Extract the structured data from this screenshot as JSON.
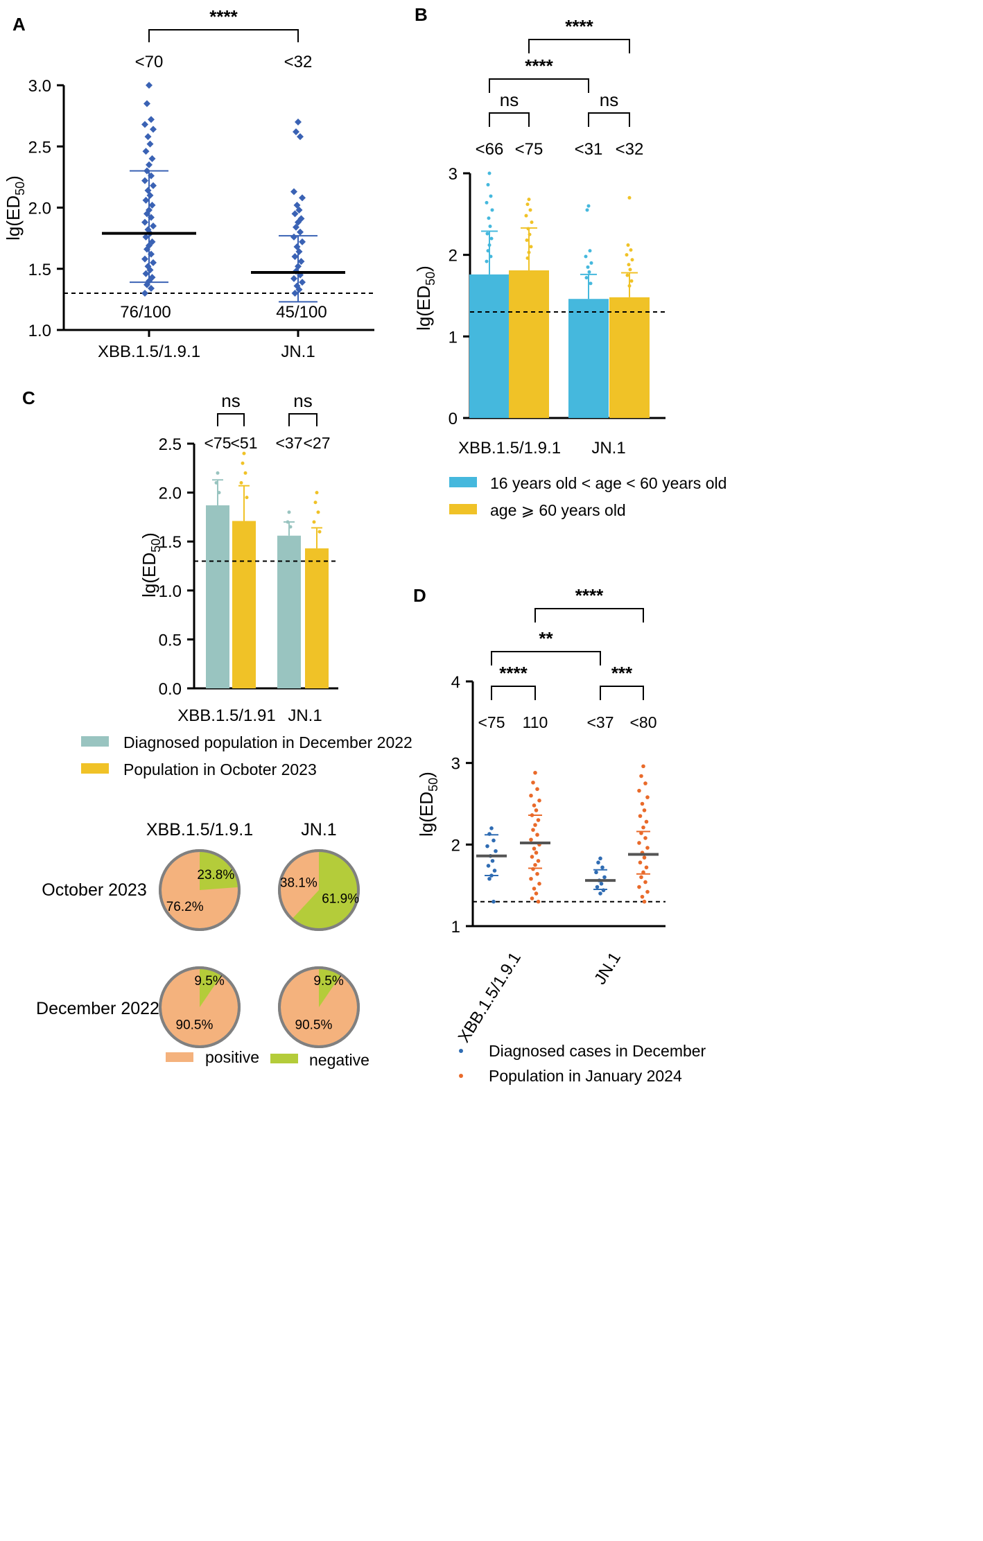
{
  "colors": {
    "blue_dark": "#3a62b4",
    "cyan": "#45b8dd",
    "gold": "#f0c227",
    "teal": "#99c4c0",
    "navy": "#2f6cb3",
    "orange": "#e96a2a",
    "salmon": "#f4b27d",
    "lime": "#b4cc3a",
    "pie_border": "#808080"
  },
  "chart_data": [
    {
      "panel": "A",
      "type": "scatter",
      "ylabel": "lg(ED50)",
      "ylim": [
        1.0,
        3.0
      ],
      "yticks": [
        "1.0",
        "1.5",
        "2.0",
        "2.5",
        "3.0"
      ],
      "yticks_values": [
        1.0,
        1.5,
        2.0,
        2.5,
        3.0
      ],
      "categories": [
        "XBB.1.5/1.9.1",
        "JN.1"
      ],
      "threshold": 1.3,
      "groups": [
        {
          "name": "XBB.1.5/1.9.1",
          "mean": 1.79,
          "sd_low": 1.39,
          "sd_high": 2.3,
          "top_label": "<70",
          "bottom_label": "76/100",
          "points": [
            3.0,
            2.85,
            2.72,
            2.68,
            2.64,
            2.58,
            2.52,
            2.46,
            2.4,
            2.35,
            2.3,
            2.26,
            2.22,
            2.18,
            2.14,
            2.1,
            2.06,
            2.02,
            1.98,
            1.95,
            1.92,
            1.88,
            1.85,
            1.82,
            1.79,
            1.76,
            1.72,
            1.69,
            1.66,
            1.62,
            1.58,
            1.55,
            1.52,
            1.49,
            1.46,
            1.43,
            1.4,
            1.37,
            1.34,
            1.3
          ]
        },
        {
          "name": "JN.1",
          "mean": 1.47,
          "sd_low": 1.23,
          "sd_high": 1.77,
          "top_label": "<32",
          "bottom_label": "45/100",
          "points": [
            2.7,
            2.62,
            2.58,
            2.13,
            2.08,
            2.02,
            1.98,
            1.95,
            1.91,
            1.88,
            1.84,
            1.8,
            1.76,
            1.72,
            1.68,
            1.64,
            1.6,
            1.56,
            1.52,
            1.48,
            1.45,
            1.42,
            1.39,
            1.36,
            1.33,
            1.3
          ]
        }
      ],
      "brackets": [
        {
          "from": 0,
          "to": 1,
          "label": "****"
        }
      ]
    },
    {
      "panel": "B",
      "type": "bar",
      "ylabel": "lg(ED50)",
      "ylim": [
        0,
        3
      ],
      "yticks": [
        "0",
        "1",
        "2",
        "3"
      ],
      "yticks_values": [
        0,
        1,
        2,
        3
      ],
      "categories": [
        "XBB.1.5/1.9.1",
        "JN.1"
      ],
      "threshold": 1.3,
      "series": [
        {
          "name": "16 years old < age < 60 years old",
          "values": [
            1.76,
            1.46
          ],
          "sd_high": [
            2.29,
            1.76
          ],
          "sd_low": [
            1.76,
            1.46
          ],
          "labels": [
            "<66",
            "<31"
          ],
          "points": [
            [
              3.0,
              2.86,
              2.72,
              2.64,
              2.55,
              2.45,
              2.35,
              2.26,
              2.2,
              2.12,
              2.05,
              1.98,
              1.92
            ],
            [
              2.6,
              2.55,
              2.05,
              1.98,
              1.9,
              1.85,
              1.79,
              1.72,
              1.65
            ]
          ]
        },
        {
          "name": "age ⩾ 60 years old",
          "values": [
            1.81,
            1.48
          ],
          "sd_high": [
            2.33,
            1.78
          ],
          "sd_low": [
            1.81,
            1.48
          ],
          "labels": [
            "<75",
            "<32"
          ],
          "points": [
            [
              2.68,
              2.62,
              2.55,
              2.48,
              2.4,
              2.32,
              2.25,
              2.18,
              2.1,
              2.03,
              1.96
            ],
            [
              2.7,
              2.12,
              2.06,
              2.0,
              1.94,
              1.88,
              1.82,
              1.75,
              1.68,
              1.62
            ]
          ]
        }
      ],
      "brackets": [
        {
          "label": "ns",
          "level": 1
        },
        {
          "label": "ns",
          "level": 1
        },
        {
          "label": "****",
          "level": 2
        },
        {
          "label": "****",
          "level": 3
        }
      ]
    },
    {
      "panel": "C",
      "type": "bar",
      "ylabel": "lg(ED50)",
      "ylim": [
        0.0,
        2.5
      ],
      "yticks": [
        "0.0",
        "0.5",
        "1.0",
        "1.5",
        "2.0",
        "2.5"
      ],
      "yticks_values": [
        0.0,
        0.5,
        1.0,
        1.5,
        2.0,
        2.5
      ],
      "categories": [
        "XBB.1.5/1.91",
        "JN.1"
      ],
      "threshold": 1.3,
      "series": [
        {
          "name": "Diagnosed population in December 2022",
          "values": [
            1.87,
            1.56
          ],
          "sd_high": [
            2.13,
            1.7
          ],
          "labels": [
            "<75",
            "<37"
          ],
          "points": [
            [
              2.2,
              2.1,
              2.0
            ],
            [
              1.8,
              1.7,
              1.65
            ]
          ]
        },
        {
          "name": "Population in Ocboter 2023",
          "values": [
            1.71,
            1.43
          ],
          "sd_high": [
            2.07,
            1.64
          ],
          "labels": [
            "<51",
            "<27"
          ],
          "points": [
            [
              2.4,
              2.3,
              2.2,
              2.1,
              1.95
            ],
            [
              2.0,
              1.9,
              1.8,
              1.7,
              1.6
            ]
          ]
        }
      ],
      "brackets": [
        {
          "label": "ns"
        },
        {
          "label": "ns"
        }
      ]
    },
    {
      "panel": "C-pies",
      "type": "pie",
      "columns": [
        "XBB.1.5/1.9.1",
        "JN.1"
      ],
      "rows": [
        "October 2023",
        "December 2022"
      ],
      "legend": [
        "positive",
        "negative"
      ],
      "pies": [
        {
          "row": "October 2023",
          "column": "XBB.1.5/1.9.1",
          "positive": 76.2,
          "negative": 23.8,
          "positive_label": "76.2%",
          "negative_label": "23.8%"
        },
        {
          "row": "October 2023",
          "column": "JN.1",
          "positive": 38.1,
          "negative": 61.9,
          "positive_label": "38.1%",
          "negative_label": "61.9%"
        },
        {
          "row": "December 2022",
          "column": "XBB.1.5/1.9.1",
          "positive": 90.5,
          "negative": 9.5,
          "positive_label": "90.5%",
          "negative_label": "9.5%"
        },
        {
          "row": "December 2022",
          "column": "JN.1",
          "positive": 90.5,
          "negative": 9.5,
          "positive_label": "90.5%",
          "negative_label": "9.5%"
        }
      ]
    },
    {
      "panel": "D",
      "type": "scatter",
      "ylabel": "lg(ED50)",
      "ylim": [
        1,
        4
      ],
      "yticks": [
        "1",
        "2",
        "3",
        "4"
      ],
      "yticks_values": [
        1,
        2,
        3,
        4
      ],
      "categories": [
        "XBB.1.5/1.9.1",
        "JN.1"
      ],
      "threshold": 1.3,
      "series": [
        {
          "name": "Diagnosed cases in December",
          "means": [
            1.86,
            1.56
          ],
          "sd_low": [
            1.62,
            1.45
          ],
          "sd_high": [
            2.12,
            1.69
          ],
          "labels": [
            "<75",
            "<37"
          ],
          "points": [
            [
              2.2,
              2.13,
              2.05,
              1.98,
              1.92,
              1.86,
              1.8,
              1.74,
              1.68,
              1.62,
              1.58,
              1.3
            ],
            [
              1.83,
              1.78,
              1.72,
              1.66,
              1.6,
              1.56,
              1.52,
              1.48,
              1.44,
              1.4
            ]
          ]
        },
        {
          "name": "Population in January 2024",
          "means": [
            2.02,
            1.88
          ],
          "sd_low": [
            1.71,
            1.64
          ],
          "sd_high": [
            2.36,
            2.16
          ],
          "labels": [
            "110",
            "<80"
          ],
          "points": [
            [
              2.88,
              2.76,
              2.68,
              2.6,
              2.54,
              2.48,
              2.42,
              2.36,
              2.3,
              2.24,
              2.18,
              2.12,
              2.06,
              2.0,
              1.95,
              1.9,
              1.85,
              1.8,
              1.75,
              1.7,
              1.64,
              1.58,
              1.52,
              1.46,
              1.4,
              1.34,
              1.3
            ],
            [
              2.96,
              2.84,
              2.75,
              2.66,
              2.58,
              2.5,
              2.42,
              2.35,
              2.28,
              2.21,
              2.14,
              2.08,
              2.02,
              1.96,
              1.9,
              1.84,
              1.78,
              1.72,
              1.66,
              1.6,
              1.54,
              1.48,
              1.42,
              1.36,
              1.3
            ]
          ]
        }
      ],
      "brackets": [
        {
          "label": "****",
          "level": 1
        },
        {
          "label": "***",
          "level": 1
        },
        {
          "label": "**",
          "level": 2
        },
        {
          "label": "****",
          "level": 3
        }
      ]
    }
  ]
}
